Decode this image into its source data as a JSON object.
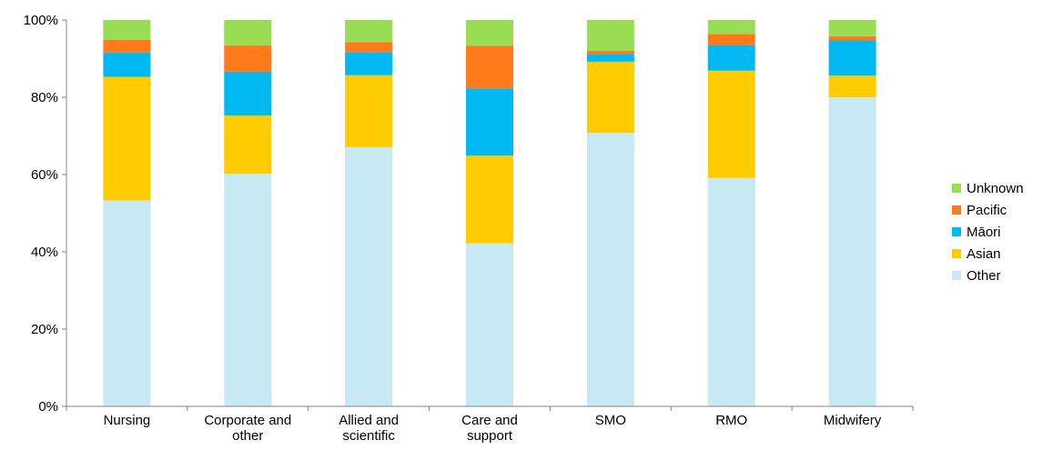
{
  "chart_data": {
    "type": "bar",
    "stacked": true,
    "title": "",
    "xlabel": "",
    "ylabel": "",
    "ylim": [
      0,
      100
    ],
    "y_ticks": [
      "0%",
      "20%",
      "40%",
      "60%",
      "80%",
      "100%"
    ],
    "grid": false,
    "legend_position": "right",
    "categories": [
      [
        "Nursing"
      ],
      [
        "Corporate and",
        "other"
      ],
      [
        "Allied and",
        "scientific"
      ],
      [
        "Care and",
        "support"
      ],
      [
        "SMO"
      ],
      [
        "RMO"
      ],
      [
        "Midwifery"
      ]
    ],
    "series": [
      {
        "name": "Other",
        "color": "#C6E9F3",
        "values": [
          53.3,
          60.2,
          67.1,
          42.2,
          70.8,
          59.1,
          80.0
        ]
      },
      {
        "name": "Asian",
        "color": "#FFCC00",
        "values": [
          32.0,
          15.1,
          18.6,
          22.7,
          18.4,
          27.8,
          5.6
        ]
      },
      {
        "name": "Māori",
        "color": "#00B9F2",
        "values": [
          6.3,
          11.3,
          6.0,
          17.4,
          2.0,
          6.6,
          9.1
        ]
      },
      {
        "name": "Pacific",
        "color": "#FF7A1A",
        "values": [
          3.3,
          6.8,
          2.6,
          11.0,
          0.8,
          2.9,
          1.1
        ]
      },
      {
        "name": "Unknown",
        "color": "#99DD55",
        "values": [
          5.1,
          6.6,
          5.7,
          6.7,
          8.0,
          3.6,
          4.2
        ]
      }
    ],
    "legend_order": [
      "Unknown",
      "Pacific",
      "Māori",
      "Asian",
      "Other"
    ]
  }
}
